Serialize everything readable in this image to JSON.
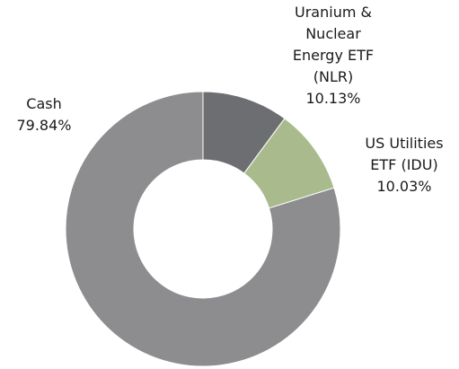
{
  "chart_data": {
    "type": "donut",
    "categories": [
      "Uranium & Nuclear Energy ETF (NLR)",
      "US Utilities ETF (IDU)",
      "Cash"
    ],
    "values": [
      10.13,
      10.03,
      79.84
    ],
    "value_labels": [
      "10.13%",
      "10.03%",
      "79.84%"
    ],
    "colors": [
      "#6d6e71",
      "#a9bb8d",
      "#8d8d90"
    ]
  }
}
